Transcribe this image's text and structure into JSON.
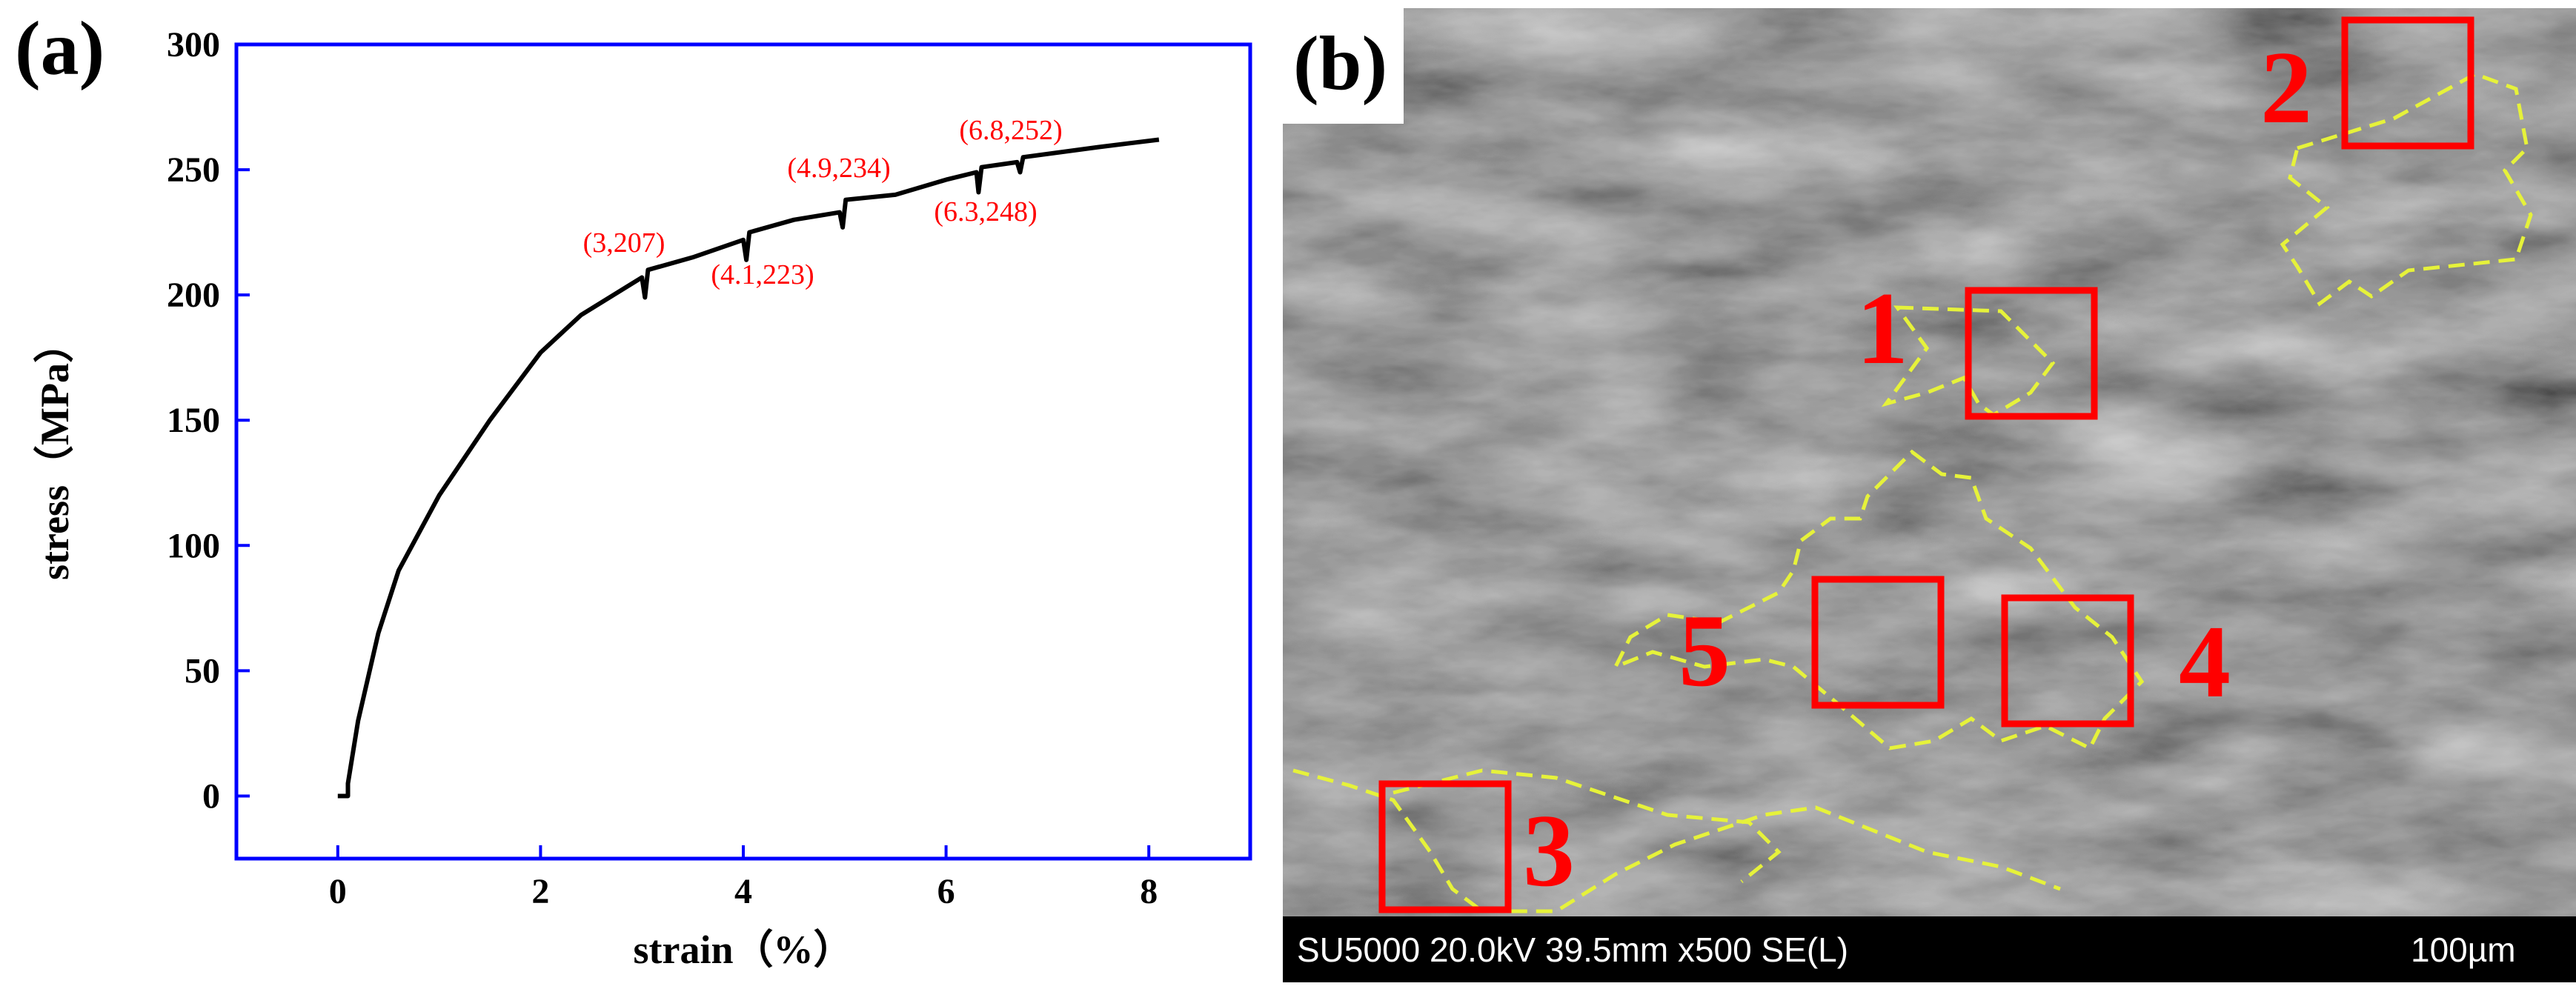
{
  "chart_data": {
    "type": "line",
    "panel_label": "(a)",
    "xlabel": "strain（%）",
    "ylabel": "stress（MPa）",
    "x": [
      0,
      0.1,
      0.1,
      0.2,
      0.4,
      0.6,
      1,
      1.5,
      2,
      2.4,
      3,
      3.03,
      3.06,
      3.5,
      4,
      4.03,
      4.06,
      4.5,
      4.95,
      4.98,
      5.01,
      5.5,
      6,
      6.3,
      6.32,
      6.35,
      6.7,
      6.73,
      6.76,
      7.5,
      8.1
    ],
    "values": [
      0,
      0,
      5,
      30,
      65,
      90,
      120,
      150,
      177,
      192,
      207,
      199,
      210,
      215,
      222,
      214,
      225,
      230,
      233,
      227,
      238,
      240,
      246,
      249,
      241,
      251,
      253,
      249,
      255,
      259,
      262
    ],
    "color": "#000000",
    "frame_color": "#0000ff",
    "xlim": [
      -1,
      9
    ],
    "ylim": [
      -25,
      300
    ],
    "xticks": [
      0,
      2,
      4,
      6,
      8
    ],
    "yticks": [
      0,
      50,
      100,
      150,
      200,
      250,
      300
    ],
    "annotations": [
      "(3,207)",
      "(4.1,223)",
      "(4.9,234)",
      "(6.3,248)",
      "(6.8,252)"
    ],
    "annotation_color": "#ff0000"
  },
  "image": {
    "label": "(b)",
    "caption": "SU5000 20.0kV 39.5mm x500 SE(L)",
    "scale_label": "100µm",
    "regions": [
      "1",
      "2",
      "3",
      "4",
      "5"
    ]
  }
}
